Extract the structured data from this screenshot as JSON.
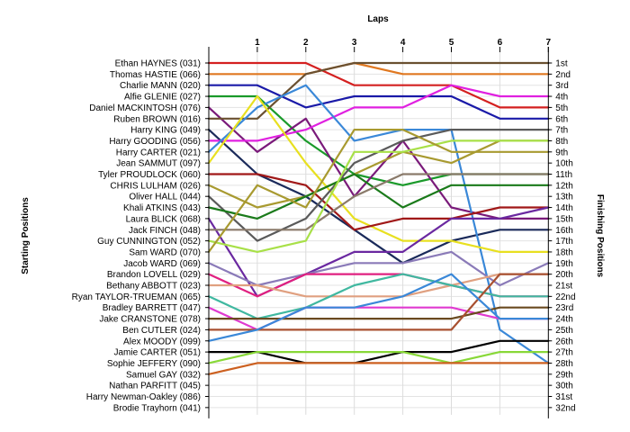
{
  "chart_data": {
    "type": "line",
    "title": "",
    "xlabel": "Laps",
    "ylabel_left": "Starting Positions",
    "ylabel_right": "Finishing Positions",
    "x": [
      1,
      2,
      3,
      4,
      5,
      6,
      7
    ],
    "grid": true,
    "drivers": [
      "Ethan HAYNES (031)",
      "Thomas HASTIE (066)",
      "Charlie MANN (020)",
      "Alfie GLENIE (027)",
      "Daniel MACKINTOSH (076)",
      "Ruben BROWN (016)",
      "Harry KING (049)",
      "Harry GOODING (056)",
      "Harry CARTER (021)",
      "Jean SAMMUT (097)",
      "Tyler PROUDLOCK (060)",
      "CHRIS LULHAM (026)",
      "Oliver HALL (044)",
      "Khali ATKINS (043)",
      "Laura BLICK (068)",
      "Jack FINCH (048)",
      "Guy CUNNINGTON (052)",
      "Sam WARD (070)",
      "Jacob WARD (069)",
      "Brandon LOVELL (029)",
      "Bethany ABBOTT (023)",
      "Ryan TAYLOR-TRUEMAN (065)",
      "Bradley BARRETT (047)",
      "Jake CRANSTONE (078)",
      "Ben CUTLER (024)",
      "Alex MOODY (099)",
      "Jamie CARTER (051)",
      "Sophie JEFFERY (090)",
      "Samuel GAY (032)",
      "Nathan PARFITT (045)",
      "Harry Newman-Oakley (086)",
      "Brodie Trayhorn (041)"
    ],
    "finishing_labels": [
      "1st",
      "2nd",
      "3rd",
      "4th",
      "5th",
      "6th",
      "7th",
      "8th",
      "9th",
      "10th",
      "11th",
      "12th",
      "13th",
      "14th",
      "15th",
      "16th",
      "17th",
      "18th",
      "19th",
      "20th",
      "21st",
      "22nd",
      "23rd",
      "24th",
      "25th",
      "26th",
      "27th",
      "28th",
      "29th",
      "30th",
      "31st",
      "32nd"
    ],
    "series": [
      {
        "start": 1,
        "positions": [
          1,
          1,
          3,
          3,
          3,
          5,
          5
        ],
        "color": "#d42020"
      },
      {
        "start": 2,
        "positions": [
          2,
          2,
          1,
          2,
          2,
          2,
          2
        ],
        "color": "#e07820"
      },
      {
        "start": 3,
        "positions": [
          3,
          5,
          4,
          4,
          4,
          6,
          6
        ],
        "color": "#1a1aa8"
      },
      {
        "start": 4,
        "positions": [
          4,
          8,
          11,
          12,
          11,
          11,
          11
        ],
        "color": "#1a9a2a"
      },
      {
        "start": 5,
        "positions": [
          9,
          6,
          13,
          8,
          14,
          15,
          15
        ],
        "color": "#7a1a7a"
      },
      {
        "start": 6,
        "positions": [
          6,
          2,
          1,
          1,
          1,
          1,
          1
        ],
        "color": "#6a5030"
      },
      {
        "start": 7,
        "positions": [
          11,
          13,
          16,
          19,
          17,
          16,
          16
        ],
        "color": "#1a2a5a"
      },
      {
        "start": 8,
        "positions": [
          8,
          7,
          5,
          5,
          3,
          4,
          4
        ],
        "color": "#e020e0"
      },
      {
        "start": 9,
        "positions": [
          5,
          3,
          8,
          7,
          7,
          25,
          28
        ],
        "color": "#3a88d8"
      },
      {
        "start": 10,
        "positions": [
          4,
          10,
          15,
          17,
          17,
          18,
          18
        ],
        "color": "#e8e020"
      },
      {
        "start": 11,
        "positions": [
          11,
          12,
          16,
          15,
          15,
          14,
          14
        ],
        "color": "#a01818"
      },
      {
        "start": 12,
        "positions": [
          14,
          13,
          11,
          9,
          10,
          8,
          8
        ],
        "color": "#a89a30"
      },
      {
        "start": 13,
        "positions": [
          17,
          15,
          10,
          8,
          7,
          7,
          7
        ],
        "color": "#5a5a5a"
      },
      {
        "start": 14,
        "positions": [
          15,
          13,
          11,
          14,
          12,
          12,
          12
        ],
        "color": "#1a7a1a"
      },
      {
        "start": 15,
        "positions": [
          22,
          20,
          18,
          18,
          15,
          15,
          14
        ],
        "color": "#6a28a0"
      },
      {
        "start": 16,
        "positions": [
          16,
          16,
          13,
          11,
          11,
          11,
          11
        ],
        "color": "#8a7a6a"
      },
      {
        "start": 17,
        "positions": [
          18,
          17,
          9,
          9,
          8,
          8,
          8
        ],
        "color": "#a8e048"
      },
      {
        "start": 18,
        "positions": [
          12,
          14,
          7,
          7,
          9,
          9,
          9
        ],
        "color": "#a89a30"
      },
      {
        "start": 19,
        "positions": [
          21,
          20,
          19,
          19,
          18,
          21,
          19
        ],
        "color": "#8a7ab8"
      },
      {
        "start": 20,
        "positions": [
          22,
          20,
          20,
          20,
          21,
          22,
          22
        ],
        "color": "#e02080"
      },
      {
        "start": 21,
        "positions": [
          21,
          22,
          22,
          22,
          21,
          20,
          20
        ],
        "color": "#e0a080"
      },
      {
        "start": 22,
        "positions": [
          24,
          23,
          21,
          20,
          21,
          22,
          22
        ],
        "color": "#40b8a0"
      },
      {
        "start": 23,
        "positions": [
          25,
          23,
          23,
          23,
          23,
          24,
          24
        ],
        "color": "#e03ad0"
      },
      {
        "start": 24,
        "positions": [
          24,
          24,
          24,
          24,
          24,
          23,
          23
        ],
        "color": "#6a4a20"
      },
      {
        "start": 25,
        "positions": [
          25,
          25,
          25,
          25,
          25,
          20,
          20
        ],
        "color": "#a85030"
      },
      {
        "start": 26,
        "positions": [
          25,
          23,
          23,
          22,
          20,
          24,
          24
        ],
        "color": "#3a88d8"
      },
      {
        "start": 27,
        "positions": [
          27,
          28,
          28,
          27,
          27,
          26,
          26
        ],
        "color": "#000000"
      },
      {
        "start": 28,
        "positions": [
          27,
          27,
          27,
          27,
          28,
          27,
          27
        ],
        "color": "#88d838"
      },
      {
        "start": 29,
        "positions": [
          28,
          28,
          28,
          28,
          28,
          28,
          28
        ],
        "color": "#cc6020"
      }
    ]
  }
}
